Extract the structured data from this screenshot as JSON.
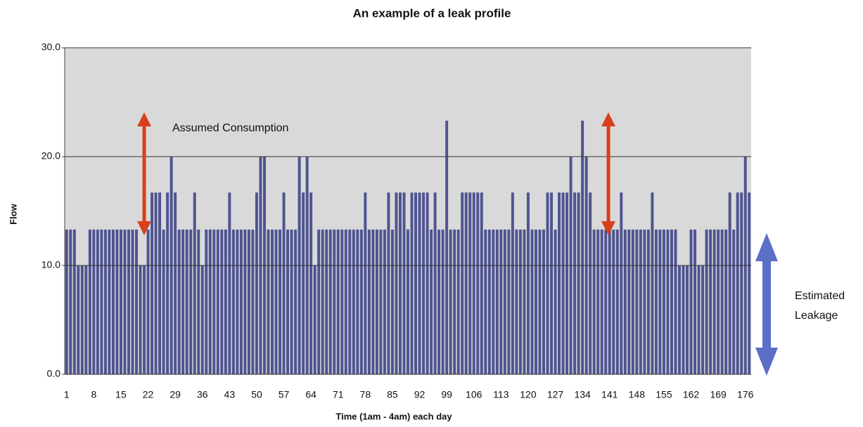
{
  "chart_data": {
    "type": "bar",
    "title": "An example of a leak profile",
    "x_label": "Time (1am - 4am) each day",
    "y_label": "Flow",
    "annotations": [
      {
        "lines": [
          "Assumed Consumption"
        ]
      },
      {
        "lines": [
          "Estimated",
          "Leakage"
        ]
      }
    ],
    "color": "#4e5491",
    "background": "#d9d9d9",
    "grid": true,
    "ylim": [
      0,
      30
    ],
    "yticks": [
      {
        "value": 0,
        "label": "0.0"
      },
      {
        "value": 10,
        "label": "10.0"
      },
      {
        "value": 20,
        "label": "20.0"
      },
      {
        "value": 30,
        "label": "30.0"
      }
    ],
    "categories": [
      1,
      null,
      null,
      null,
      null,
      null,
      null,
      8,
      null,
      null,
      null,
      null,
      null,
      null,
      15,
      null,
      null,
      null,
      null,
      null,
      null,
      22,
      null,
      null,
      null,
      null,
      null,
      null,
      29,
      null,
      null,
      null,
      null,
      null,
      null,
      36,
      null,
      null,
      null,
      null,
      null,
      null,
      43,
      null,
      null,
      null,
      null,
      null,
      null,
      50,
      null,
      null,
      null,
      null,
      null,
      null,
      57,
      null,
      null,
      null,
      null,
      null,
      null,
      64,
      null,
      null,
      null,
      null,
      null,
      null,
      71,
      null,
      null,
      null,
      null,
      null,
      null,
      78,
      null,
      null,
      null,
      null,
      null,
      null,
      85,
      null,
      null,
      null,
      null,
      null,
      null,
      92,
      null,
      null,
      null,
      null,
      null,
      null,
      99,
      null,
      null,
      null,
      null,
      null,
      null,
      106,
      null,
      null,
      null,
      null,
      null,
      null,
      113,
      null,
      null,
      null,
      null,
      null,
      null,
      120,
      null,
      null,
      null,
      null,
      null,
      null,
      127,
      null,
      null,
      null,
      null,
      null,
      null,
      134,
      null,
      null,
      null,
      null,
      null,
      null,
      141,
      null,
      null,
      null,
      null,
      null,
      null,
      148,
      null,
      null,
      null,
      null,
      null,
      null,
      155,
      null,
      null,
      null,
      null,
      null,
      null,
      162,
      null,
      null,
      null,
      null,
      null,
      null,
      169,
      null,
      null,
      null,
      null,
      null,
      null,
      176,
      null
    ],
    "values": [
      13.3,
      13.3,
      13.3,
      10,
      10,
      10,
      13.3,
      13.3,
      13.3,
      13.3,
      13.3,
      13.3,
      13.3,
      13.3,
      13.3,
      13.3,
      13.3,
      13.3,
      13.3,
      10,
      10,
      13.3,
      16.7,
      16.7,
      16.7,
      13.3,
      16.7,
      20,
      16.7,
      13.3,
      13.3,
      13.3,
      13.3,
      16.7,
      13.3,
      10,
      13.3,
      13.3,
      13.3,
      13.3,
      13.3,
      13.3,
      16.7,
      13.3,
      13.3,
      13.3,
      13.3,
      13.3,
      13.3,
      16.7,
      20,
      20,
      13.3,
      13.3,
      13.3,
      13.3,
      16.7,
      13.3,
      13.3,
      13.3,
      20,
      16.7,
      20,
      16.7,
      10,
      13.3,
      13.3,
      13.3,
      13.3,
      13.3,
      13.3,
      13.3,
      13.3,
      13.3,
      13.3,
      13.3,
      13.3,
      16.7,
      13.3,
      13.3,
      13.3,
      13.3,
      13.3,
      16.7,
      13.3,
      16.7,
      16.7,
      16.7,
      13.3,
      16.7,
      16.7,
      16.7,
      16.7,
      16.7,
      13.3,
      16.7,
      13.3,
      13.3,
      23.3,
      13.3,
      13.3,
      13.3,
      16.7,
      16.7,
      16.7,
      16.7,
      16.7,
      16.7,
      13.3,
      13.3,
      13.3,
      13.3,
      13.3,
      13.3,
      13.3,
      16.7,
      13.3,
      13.3,
      13.3,
      16.7,
      13.3,
      13.3,
      13.3,
      13.3,
      16.7,
      16.7,
      13.3,
      16.7,
      16.7,
      16.7,
      20,
      16.7,
      16.7,
      23.3,
      20,
      16.7,
      13.3,
      13.3,
      13.3,
      13.3,
      13.3,
      13.3,
      13.3,
      16.7,
      13.3,
      13.3,
      13.3,
      13.3,
      13.3,
      13.3,
      13.3,
      16.7,
      13.3,
      13.3,
      13.3,
      13.3,
      13.3,
      13.3,
      10,
      10,
      10,
      13.3,
      13.3,
      10,
      10,
      13.3,
      13.3,
      13.3,
      13.3,
      13.3,
      13.3,
      16.7,
      13.3,
      16.7,
      16.7,
      20,
      16.7
    ]
  }
}
